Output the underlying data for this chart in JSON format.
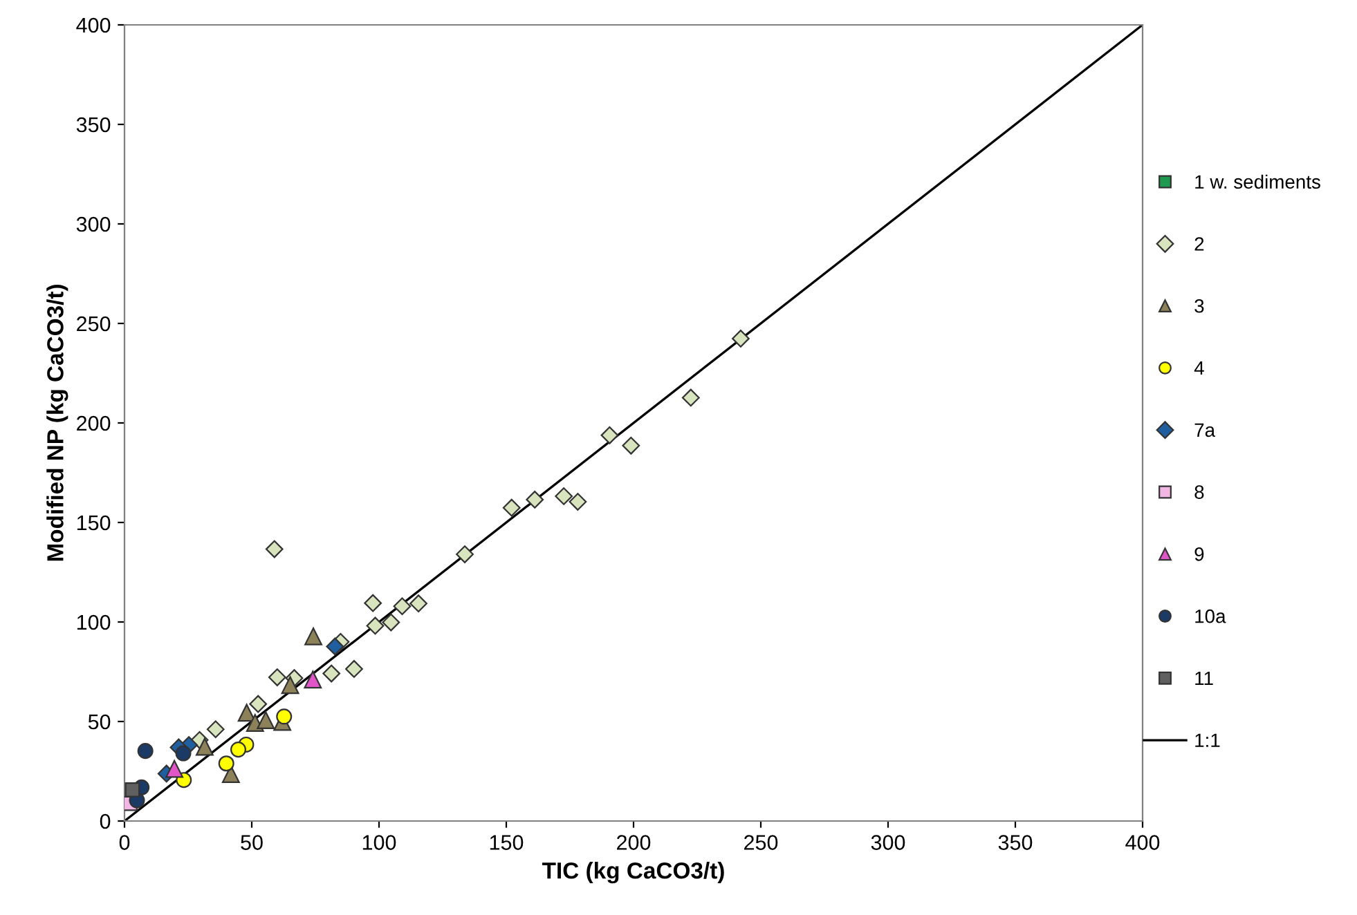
{
  "chart_data": {
    "type": "scatter",
    "xlabel": "TIC (kg CaCO3/t)",
    "ylabel": "Modified NP (kg CaCO3/t)",
    "xlim": [
      0,
      400
    ],
    "ylim": [
      0,
      400
    ],
    "xticks": [
      0,
      50,
      100,
      150,
      200,
      250,
      300,
      350,
      400
    ],
    "yticks": [
      0,
      50,
      100,
      150,
      200,
      250,
      300,
      350,
      400
    ],
    "grid": false,
    "legend": "right",
    "series": [
      {
        "name": "1 w. sediments",
        "color": "#1e9a50",
        "marker": "square",
        "x": [
          null
        ],
        "values": [
          null
        ]
      },
      {
        "name": "2",
        "color": "#d7e4bd",
        "marker": "diamond",
        "x": [
          58.9,
          133.7,
          97.6,
          109.1,
          115.5,
          98.5,
          104.7,
          84.9,
          60,
          66.7,
          81.3,
          90.2,
          52.5,
          35.8,
          29.5,
          152.1,
          161.2,
          172.6,
          178.1,
          190.6,
          199.0,
          222.5,
          242.1
        ],
        "values": [
          136.6,
          134,
          109.5,
          107.9,
          109.3,
          98.1,
          99.8,
          90,
          72.2,
          71.8,
          74.1,
          76.4,
          58.8,
          46.1,
          40.7,
          157.4,
          161.5,
          163.2,
          160.4,
          193.8,
          188.6,
          212.7,
          242.4
        ]
      },
      {
        "name": "3",
        "color": "#8c8158",
        "marker": "triangle",
        "x": [
          74.2,
          65.1,
          48,
          51.3,
          55.5,
          62,
          31.5,
          41.8
        ],
        "values": [
          92.8,
          68.3,
          54.4,
          49.3,
          50.7,
          49.8,
          37.3,
          23.6
        ]
      },
      {
        "name": "4",
        "color": "#ffff00",
        "marker": "circle",
        "x": [
          62.7,
          47.8,
          44.7,
          40,
          23.3
        ],
        "values": [
          52.5,
          38.4,
          35.9,
          28.9,
          20.6
        ]
      },
      {
        "name": "7a",
        "color": "#1f5f9f",
        "marker": "diamond",
        "x": [
          82.7,
          25.3,
          21.3,
          16.5
        ],
        "values": [
          87.7,
          38.2,
          37,
          23.8
        ]
      },
      {
        "name": "8",
        "color": "#f2b6e4",
        "marker": "square",
        "x": [
          2.2
        ],
        "values": [
          8.8
        ]
      },
      {
        "name": "9",
        "color": "#e055c8",
        "marker": "triangle",
        "x": [
          74,
          19.6
        ],
        "values": [
          71.1,
          26.2
        ]
      },
      {
        "name": "10a",
        "color": "#1b3a66",
        "marker": "circle",
        "x": [
          8.2,
          23.1,
          6.7,
          4.9
        ],
        "values": [
          35.2,
          34,
          16.9,
          10.4
        ]
      },
      {
        "name": "11",
        "color": "#606060",
        "marker": "square",
        "x": [
          3.1
        ],
        "values": [
          15.7
        ]
      },
      {
        "name": "1:1",
        "type": "line",
        "color": "#000000",
        "marker": "none",
        "line_style": "solid",
        "x": [
          0,
          400
        ],
        "values": [
          0,
          400
        ]
      }
    ]
  }
}
